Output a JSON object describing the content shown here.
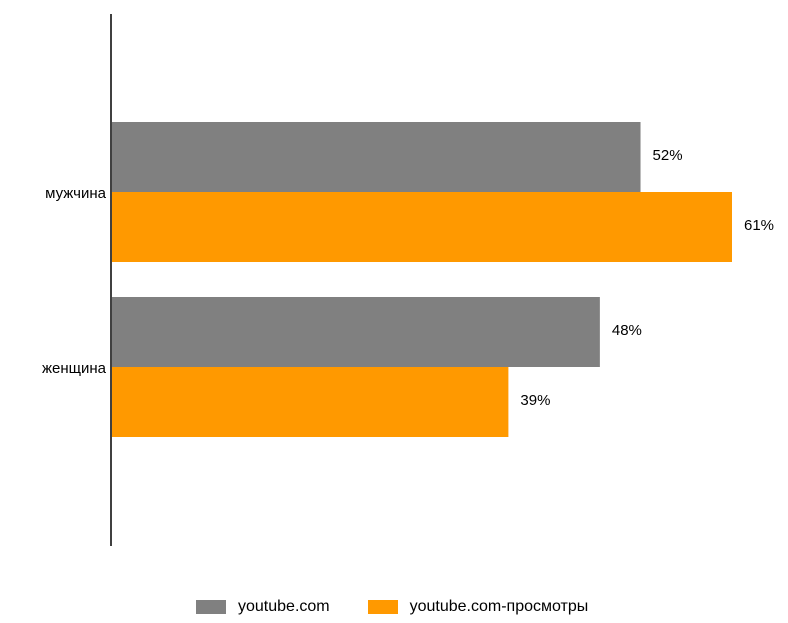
{
  "chart_data": {
    "type": "bar",
    "orientation": "horizontal",
    "categories": [
      "мужчина",
      "женщина"
    ],
    "series": [
      {
        "name": "youtube.com",
        "values": [
          52,
          48
        ],
        "labels": [
          "52%",
          "48%"
        ],
        "color": "#808080"
      },
      {
        "name": "youtube.com-просмотры",
        "values": [
          61,
          39
        ],
        "labels": [
          "61%",
          "39%"
        ],
        "color": "#FF9900"
      }
    ],
    "xlim": [
      0,
      100
    ],
    "grid": false,
    "legend_position": "bottom"
  }
}
